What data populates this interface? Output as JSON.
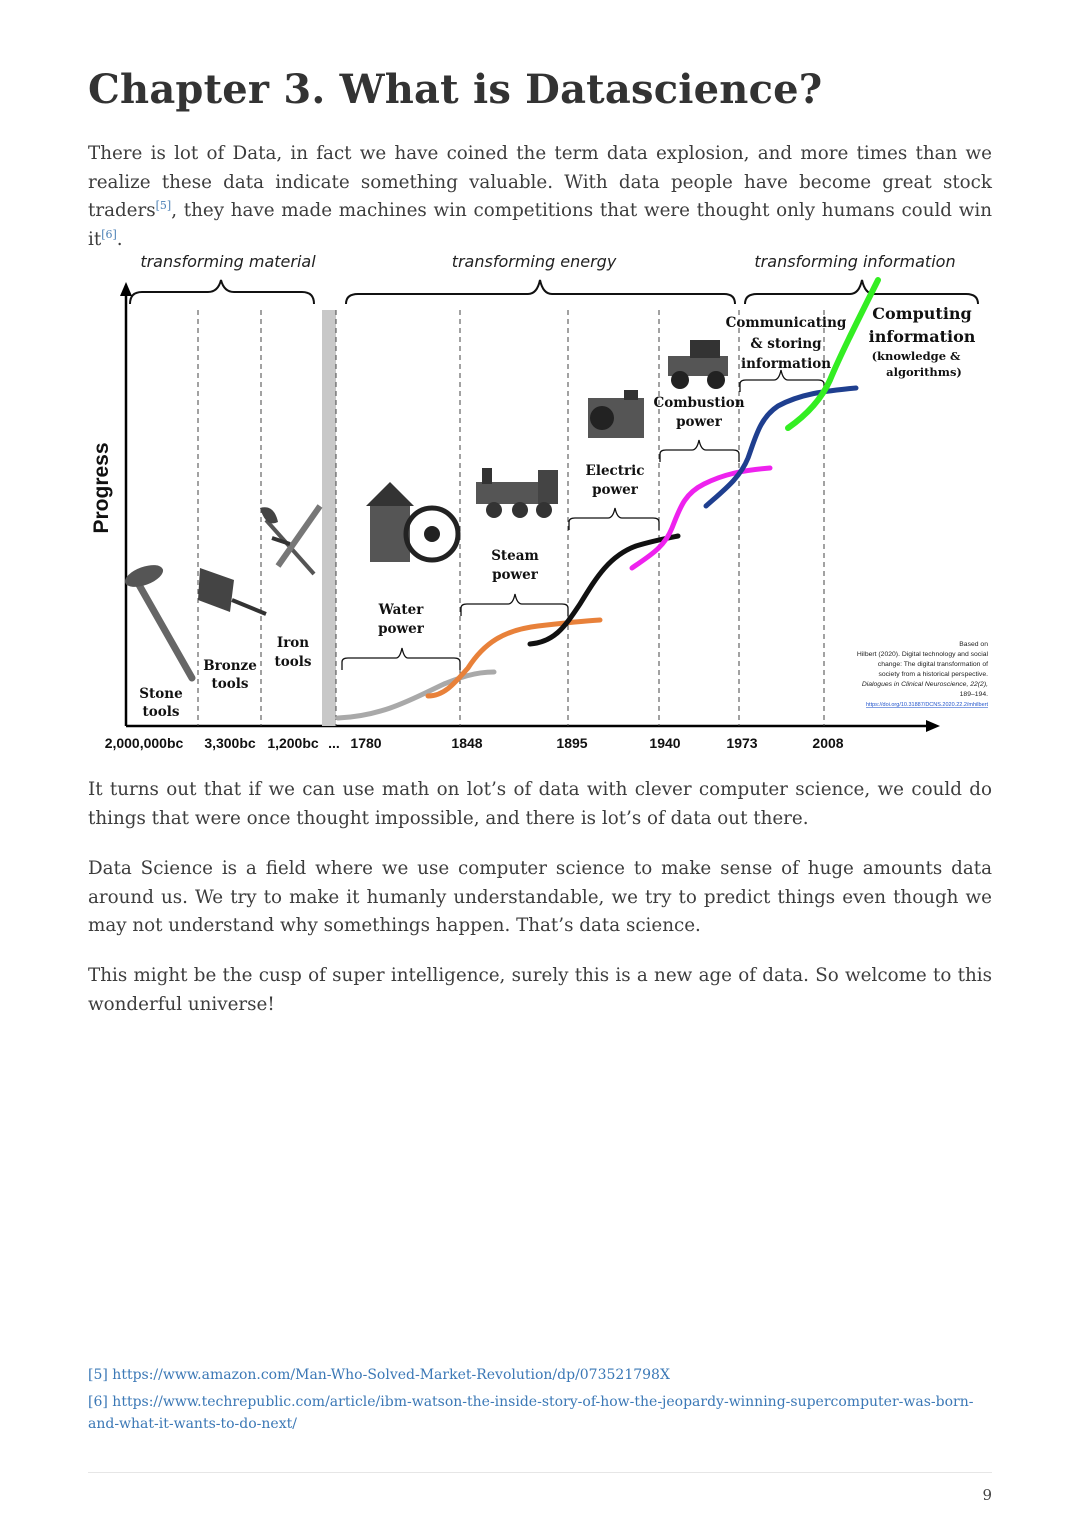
{
  "title": "Chapter 3. What is Datascience?",
  "para1": {
    "a": "There is lot of Data, in fact we have coined the term data explosion, and more times than we realize these data indicate something valuable. With data people have become great stock traders",
    "ref1": "[5]",
    "b": ", they have made machines win competitions that were thought only humans could win it",
    "ref2": "[6]",
    "c": "."
  },
  "figure": {
    "eras": [
      "transforming material",
      "transforming energy",
      "transforming information"
    ],
    "ylabel": "Progress",
    "xticks": [
      "2,000,000bc",
      "3,300bc",
      "1,200bc",
      "...",
      "1780",
      "1848",
      "1895",
      "1940",
      "1973",
      "2008"
    ],
    "stages": {
      "stone": [
        "Stone",
        "tools"
      ],
      "bronze": [
        "Bronze",
        "tools"
      ],
      "iron": [
        "Iron",
        "tools"
      ],
      "water": [
        "Water",
        "power"
      ],
      "steam": [
        "Steam",
        "power"
      ],
      "electric": [
        "Electric",
        "power"
      ],
      "combustion": [
        "Combustion",
        "power"
      ],
      "communicating": [
        "Communicating",
        "& storing",
        "information"
      ],
      "computing": [
        "Computing",
        "information",
        "(knowledge &",
        "algorithms)"
      ]
    },
    "source": [
      "Based on",
      "Hilbert (2020). Digital technology and social",
      "change: The digital transformation of",
      "society from a historical perspective.",
      "Dialogues in Clinical Neuroscience, 22(2),",
      "189–194.",
      "https://doi.org/10.31887/DCNS.2020.22.2/mhilbert"
    ],
    "colors": {
      "water": "#a9a9a9",
      "steam": "#e8813a",
      "electric": "#111111",
      "combustion": "#ee22ee",
      "communicating": "#1f3f8f",
      "computing": "#33ee22"
    }
  },
  "para2": "It turns out that if we can use math on lot’s of data with clever computer science, we could do things that were once thought impossible, and there is lot’s of data out there.",
  "para3": "Data Science is a field where we use computer science to make sense of huge amounts data around us. We try to make it humanly understandable, we try to predict things even though we may not understand why somethings happen. That’s data science.",
  "para4": "This might be the cusp of super intelligence, surely this is a new age of data. So welcome to this wonderful universe!",
  "footnotes": [
    {
      "num": "[5]",
      "url": "https://www.amazon.com/Man-Who-Solved-Market-Revolution/dp/073521798X"
    },
    {
      "num": "[6]",
      "url": "https://www.techrepublic.com/article/ibm-watson-the-inside-story-of-how-the-jeopardy-winning-supercomputer-was-born-and-what-it-wants-to-do-next/"
    }
  ],
  "page_number": "9"
}
